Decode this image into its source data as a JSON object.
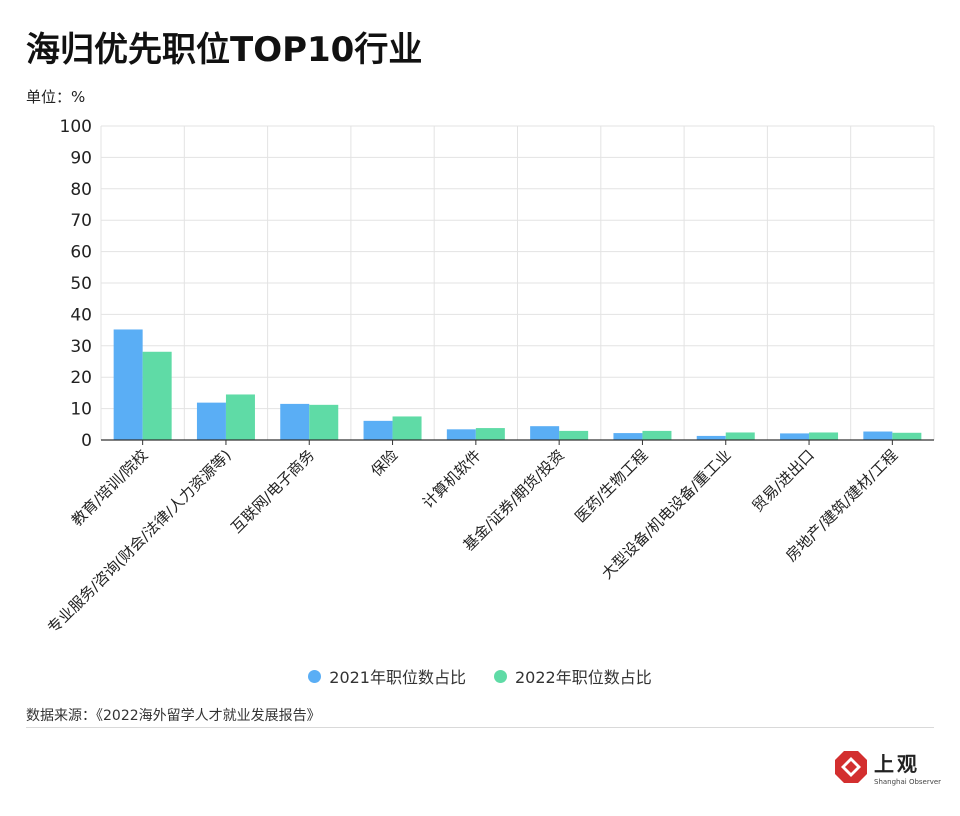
{
  "title": "海归优先职位TOP10行业",
  "unit_label": "单位：%",
  "source": "数据来源：《2022海外留学人才就业发展报告》",
  "logo": {
    "cn": "上观",
    "en": "Shanghai Observer",
    "color": "#d32f2f"
  },
  "colors": {
    "series2021": "#5aaef5",
    "series2022": "#5fdba6",
    "grid": "#e3e3e3",
    "axis": "#333333"
  },
  "chart_data": {
    "type": "bar",
    "categories": [
      "教育/培训/院校",
      "专业服务/咨询(财会/法律/人力资源等)",
      "互联网/电子商务",
      "保险",
      "计算机软件",
      "基金/证券/期货/投资",
      "医药/生物工程",
      "大型设备/机电设备/重工业",
      "贸易/进出口",
      "房地产/建筑/建材/工程"
    ],
    "series": [
      {
        "name": "2021年职位数占比",
        "values": [
          35.2,
          11.9,
          11.5,
          6.1,
          3.4,
          4.4,
          2.2,
          1.3,
          2.1,
          2.7
        ]
      },
      {
        "name": "2022年职位数占比",
        "values": [
          28.1,
          14.5,
          11.2,
          7.5,
          3.8,
          2.9,
          2.9,
          2.4,
          2.4,
          2.3
        ]
      }
    ],
    "ylim": [
      0,
      100
    ],
    "yticks": [
      0,
      10,
      20,
      30,
      40,
      50,
      60,
      70,
      80,
      90,
      100
    ],
    "grid": true,
    "legend": "bottom-center"
  }
}
